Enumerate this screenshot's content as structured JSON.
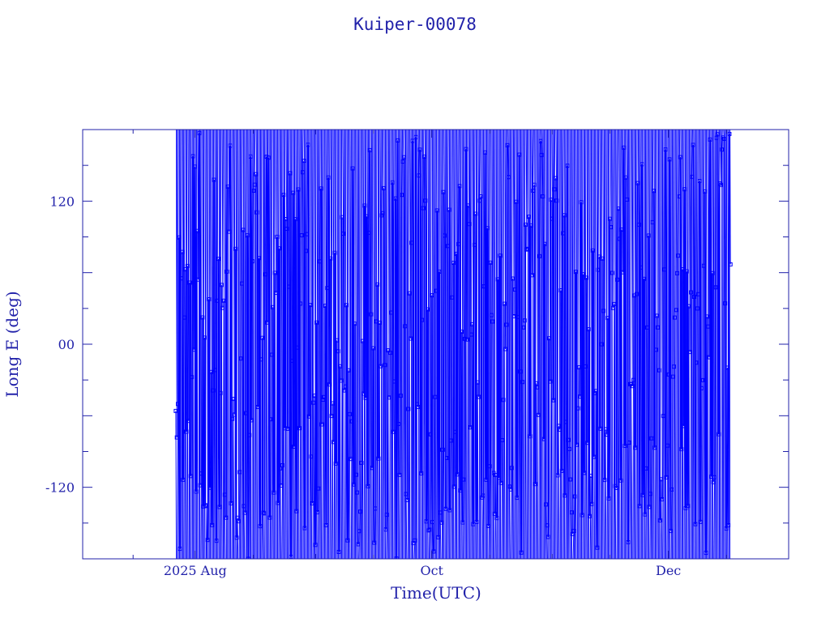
{
  "chart_data": {
    "type": "line",
    "title": "Kuiper-00078",
    "xlabel": "Time(UTC)",
    "ylabel": "Long E (deg)",
    "ylim": [
      -180,
      180
    ],
    "xlim": [
      "2025-07-03",
      "2026-01-01"
    ],
    "x_tick_labels": [
      {
        "date": "2025-08-01",
        "label": "2025 Aug"
      },
      {
        "date": "2025-10-01",
        "label": "Oct"
      },
      {
        "date": "2025-12-01",
        "label": "Dec"
      }
    ],
    "y_tick_labels": [
      {
        "value": 120,
        "label": "120"
      },
      {
        "value": 0,
        "label": "00"
      },
      {
        "value": -120,
        "label": "-120"
      }
    ],
    "colors": {
      "axes": "#2222aa",
      "series": "#0000ff"
    },
    "marker": "square",
    "series": [
      {
        "start_date": "2025-07-27",
        "end_date": "2025-12-17",
        "start_value": -56,
        "end_value": 67,
        "values_at_plot_bottom_start": [
          -175,
          -177
        ],
        "note_values": "Longitude wraps between -180 and 180; observed track sweeps full range repeatedly"
      }
    ]
  }
}
